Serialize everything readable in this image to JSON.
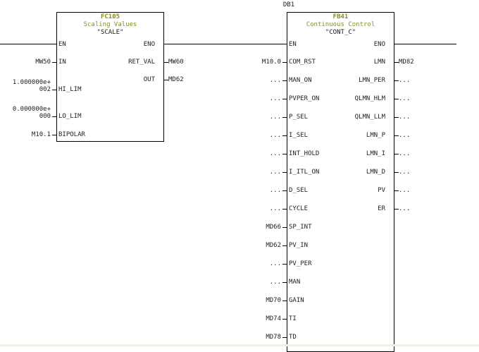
{
  "fc105": {
    "number": "FC105",
    "comment": "Scaling Values",
    "symbol": "\"SCALE\"",
    "en": "EN",
    "eno": "ENO",
    "inputs": [
      {
        "pin": "IN",
        "operand": "MW50"
      },
      {
        "pin": "HI_LIM",
        "operand": "1.000000e+\n002"
      },
      {
        "pin": "LO_LIM",
        "operand": "0.000000e+\n000"
      },
      {
        "pin": "BIPOLAR",
        "operand": "M10.1"
      }
    ],
    "outputs": [
      {
        "pin": "RET_VAL",
        "operand": "MW60"
      },
      {
        "pin": "OUT",
        "operand": "MD62"
      }
    ]
  },
  "fb41": {
    "instance_db": "DB1",
    "number": "FB41",
    "comment": "Continuous Control",
    "symbol": "\"CONT_C\"",
    "en": "EN",
    "eno": "ENO",
    "inputs": [
      {
        "pin": "COM_RST",
        "operand": "M10.0"
      },
      {
        "pin": "MAN_ON",
        "operand": "..."
      },
      {
        "pin": "PVPER_ON",
        "operand": "..."
      },
      {
        "pin": "P_SEL",
        "operand": "..."
      },
      {
        "pin": "I_SEL",
        "operand": "..."
      },
      {
        "pin": "INT_HOLD",
        "operand": "..."
      },
      {
        "pin": "I_ITL_ON",
        "operand": "..."
      },
      {
        "pin": "D_SEL",
        "operand": "..."
      },
      {
        "pin": "CYCLE",
        "operand": "..."
      },
      {
        "pin": "SP_INT",
        "operand": "MD66"
      },
      {
        "pin": "PV_IN",
        "operand": "MD62"
      },
      {
        "pin": "PV_PER",
        "operand": "..."
      },
      {
        "pin": "MAN",
        "operand": "..."
      },
      {
        "pin": "GAIN",
        "operand": "MD70"
      },
      {
        "pin": "TI",
        "operand": "MD74"
      },
      {
        "pin": "TD",
        "operand": "MD78"
      }
    ],
    "outputs": [
      {
        "pin": "LMN",
        "operand": "MD82"
      },
      {
        "pin": "LMN_PER",
        "operand": "..."
      },
      {
        "pin": "QLMN_HLM",
        "operand": "..."
      },
      {
        "pin": "QLMN_LLM",
        "operand": "..."
      },
      {
        "pin": "LMN_P",
        "operand": "..."
      },
      {
        "pin": "LMN_I",
        "operand": "..."
      },
      {
        "pin": "LMN_D",
        "operand": "..."
      },
      {
        "pin": "PV",
        "operand": "..."
      },
      {
        "pin": "ER",
        "operand": "..."
      }
    ]
  }
}
